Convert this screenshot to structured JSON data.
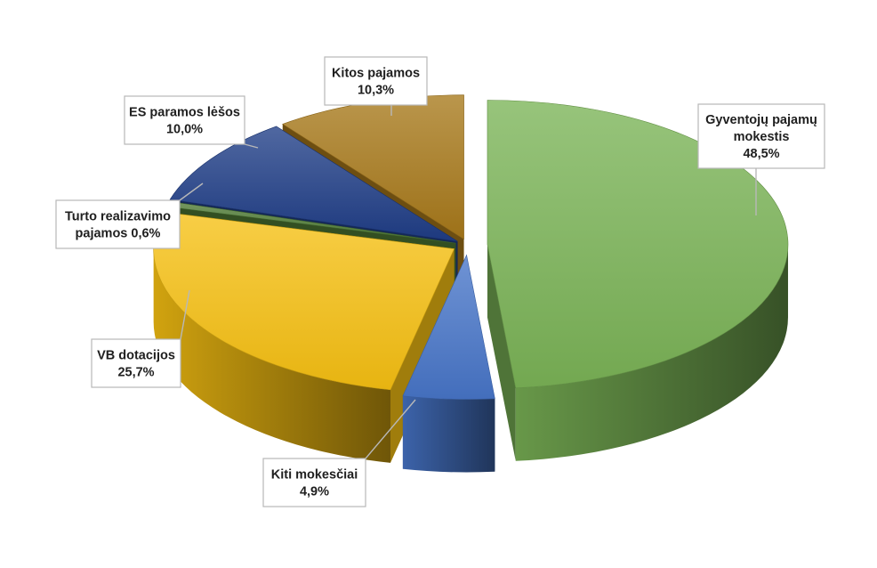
{
  "chart_data": {
    "type": "pie",
    "title": "",
    "slices": [
      {
        "label": "Gyventojų pajamų mokestis",
        "value": 48.5,
        "label_lines": [
          "Gyventojų pajamų",
          "mokestis",
          "48,5%"
        ],
        "color": "#7ab356"
      },
      {
        "label": "Kiti mokesčiai",
        "value": 4.9,
        "label_lines": [
          "Kiti mokesčiai",
          "4,9%"
        ],
        "color": "#4775c8"
      },
      {
        "label": "VB dotacijos",
        "value": 25.7,
        "label_lines": [
          "VB dotacijos",
          "25,7%"
        ],
        "color": "#f6c012"
      },
      {
        "label": "Turto realizavimo pajamos",
        "value": 0.6,
        "label_lines": [
          "Turto realizavimo",
          "pajamos 0,6%"
        ],
        "color": "#4e7a34"
      },
      {
        "label": "ES paramos lėšos",
        "value": 10.0,
        "label_lines": [
          "ES paramos lėšos",
          "10,0%"
        ],
        "color": "#1f3d86"
      },
      {
        "label": "Kitos pajamos",
        "value": 10.3,
        "label_lines": [
          "Kitos pajamos",
          "10,3%"
        ],
        "color": "#a7781a"
      }
    ]
  }
}
